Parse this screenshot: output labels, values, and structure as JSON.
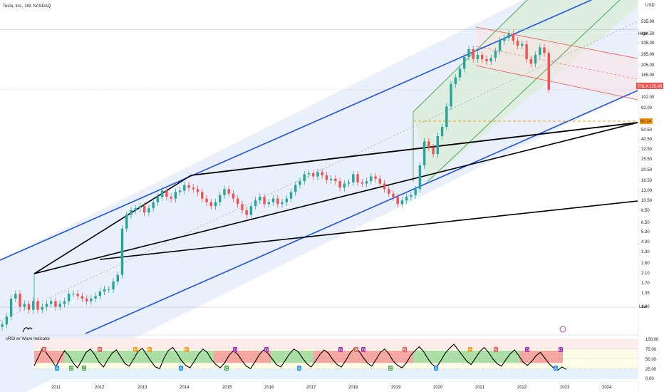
{
  "header": {
    "title": "Tesla, Inc., 1W, NASDAQ"
  },
  "price_scale": {
    "currency": "USD",
    "ticks": [
      "535.00",
      "414.50",
      "335.00",
      "265.00",
      "205.00",
      "165.00",
      "125.49",
      "102.00",
      "82.00",
      "60.24",
      "50.50",
      "40.50",
      "32.50",
      "25.50",
      "20.50",
      "16.50",
      "13.00",
      "10.50",
      "8.50",
      "6.50",
      "5.30",
      "4.30",
      "3.30",
      "2.60",
      "2.10",
      "1.70",
      "1.35",
      "1.00"
    ],
    "high_label": "High",
    "low_label": "Low",
    "last_price": "125.49",
    "symbol_tag": "TSLA",
    "level_price": "60.24"
  },
  "time_axis": {
    "labels": [
      "2011",
      "2012",
      "2013",
      "2014",
      "2015",
      "2016",
      "2017",
      "2018",
      "2019",
      "2020",
      "2021",
      "2022",
      "2023",
      "2024"
    ]
  },
  "indicator": {
    "title": "cRSI w/ Wave Indicator",
    "ticks": [
      "100.00",
      "75.00",
      "50.00",
      "25.00",
      "0.00"
    ],
    "markers": [
      "A",
      "B",
      "C",
      "D",
      "E"
    ]
  },
  "colors": {
    "up": "#26a69a",
    "down": "#ef5350",
    "channel": "#1e53e5",
    "channel_fill": "#e8eefb",
    "green_channel": "#43a047",
    "red_channel": "#ef5350",
    "level": "#ff9800",
    "trendline": "#000000",
    "crsi": "#000000"
  },
  "chart_data": [
    {
      "type": "candlestick",
      "title": "Tesla, Inc., 1W, NASDAQ",
      "y_scale": "log",
      "ylim": [
        1.0,
        600
      ],
      "xlim": [
        2010.55,
        2024.9
      ],
      "currency": "USD",
      "last_price": 125.49,
      "high_marker": 414.5,
      "low_marker": 1.0,
      "level": 60.24,
      "x": [
        2010.6,
        2010.7,
        2010.8,
        2010.9,
        2011.0,
        2011.1,
        2011.2,
        2011.3,
        2011.4,
        2011.5,
        2011.6,
        2011.7,
        2011.8,
        2011.9,
        2012.0,
        2012.1,
        2012.2,
        2012.3,
        2012.4,
        2012.5,
        2012.6,
        2012.7,
        2012.8,
        2012.9,
        2013.0,
        2013.1,
        2013.2,
        2013.3,
        2013.4,
        2013.5,
        2013.6,
        2013.7,
        2013.8,
        2013.9,
        2014.0,
        2014.1,
        2014.2,
        2014.3,
        2014.4,
        2014.5,
        2014.6,
        2014.7,
        2014.8,
        2014.9,
        2015.0,
        2015.1,
        2015.2,
        2015.3,
        2015.4,
        2015.5,
        2015.6,
        2015.7,
        2015.8,
        2015.9,
        2016.0,
        2016.1,
        2016.2,
        2016.3,
        2016.4,
        2016.5,
        2016.6,
        2016.7,
        2016.8,
        2016.9,
        2017.0,
        2017.1,
        2017.2,
        2017.3,
        2017.4,
        2017.5,
        2017.6,
        2017.7,
        2017.8,
        2017.9,
        2018.0,
        2018.1,
        2018.2,
        2018.3,
        2018.4,
        2018.5,
        2018.6,
        2018.7,
        2018.8,
        2018.9,
        2019.0,
        2019.1,
        2019.2,
        2019.3,
        2019.4,
        2019.5,
        2019.6,
        2019.7,
        2019.8,
        2019.9,
        2020.0,
        2020.1,
        2020.2,
        2020.3,
        2020.4,
        2020.5,
        2020.6,
        2020.7,
        2020.8,
        2020.9,
        2021.0,
        2021.1,
        2021.2,
        2021.3,
        2021.4,
        2021.5,
        2021.6,
        2021.7,
        2021.8,
        2021.9,
        2022.0,
        2022.1,
        2022.2,
        2022.3,
        2022.4,
        2022.5,
        2022.6,
        2022.7,
        2022.8,
        2022.9
      ],
      "close": [
        1.2,
        1.4,
        2.0,
        2.2,
        1.7,
        1.8,
        1.6,
        1.9,
        1.6,
        1.7,
        1.8,
        1.9,
        1.7,
        1.8,
        1.9,
        2.2,
        2.2,
        2.1,
        2.0,
        1.9,
        2.0,
        2.1,
        2.3,
        2.4,
        2.4,
        2.8,
        3.2,
        8.0,
        10.5,
        11.5,
        12.0,
        12.5,
        11.0,
        12.0,
        13.5,
        15.0,
        17.0,
        15.0,
        14.5,
        16.5,
        17.0,
        19.0,
        18.0,
        17.5,
        16.5,
        14.5,
        13.5,
        12.5,
        13.5,
        15.5,
        17.5,
        16.0,
        14.5,
        13.0,
        11.5,
        10.5,
        12.5,
        14.0,
        15.0,
        13.0,
        13.5,
        14.5,
        13.0,
        13.5,
        14.5,
        16.5,
        19.0,
        20.5,
        23.5,
        24.0,
        22.5,
        24.5,
        23.0,
        21.0,
        21.5,
        20.5,
        18.0,
        19.5,
        20.0,
        23.5,
        20.0,
        19.5,
        20.5,
        22.5,
        21.5,
        19.5,
        17.5,
        16.0,
        15.0,
        13.0,
        14.0,
        15.0,
        15.5,
        17.5,
        28.0,
        45.0,
        40.0,
        35.0,
        50.0,
        60.0,
        90.0,
        140.0,
        160.0,
        190.0,
        240.0,
        280.0,
        230.0,
        250.0,
        230.0,
        220.0,
        235.0,
        270.0,
        330.0,
        350.0,
        380.0,
        330.0,
        300.0,
        310.0,
        230.0,
        210.0,
        250.0,
        290.0,
        260.0,
        125.49
      ]
    },
    {
      "type": "line",
      "title": "cRSI w/ Wave Indicator",
      "ylim": [
        0,
        100
      ],
      "bands": [
        75,
        50,
        25
      ],
      "values": [
        33,
        55,
        78,
        62,
        48,
        30,
        52,
        70,
        58,
        40,
        28,
        46,
        66,
        74,
        60,
        42,
        30,
        48,
        64,
        72,
        55,
        38,
        32,
        50,
        68,
        76,
        60,
        44,
        30,
        26,
        52,
        70,
        78,
        64,
        46,
        34,
        28,
        44,
        62,
        74,
        66,
        48,
        36,
        28,
        40,
        58,
        70,
        62,
        46,
        32,
        26,
        42,
        60,
        72,
        64,
        50,
        36,
        30,
        46,
        62,
        74,
        68,
        52,
        38,
        30,
        44,
        60,
        72,
        64,
        48,
        36,
        30,
        46,
        64,
        76,
        70,
        54,
        40,
        32,
        48,
        66,
        74,
        62,
        44,
        34,
        28,
        40,
        58,
        70,
        80,
        68,
        50,
        36,
        30,
        46,
        64,
        76,
        86,
        72,
        58,
        44,
        36,
        52,
        68,
        78,
        66,
        50,
        38,
        32,
        48,
        62,
        72,
        58,
        42,
        34,
        44,
        58,
        66,
        52,
        38,
        28,
        22,
        30,
        24
      ]
    }
  ]
}
